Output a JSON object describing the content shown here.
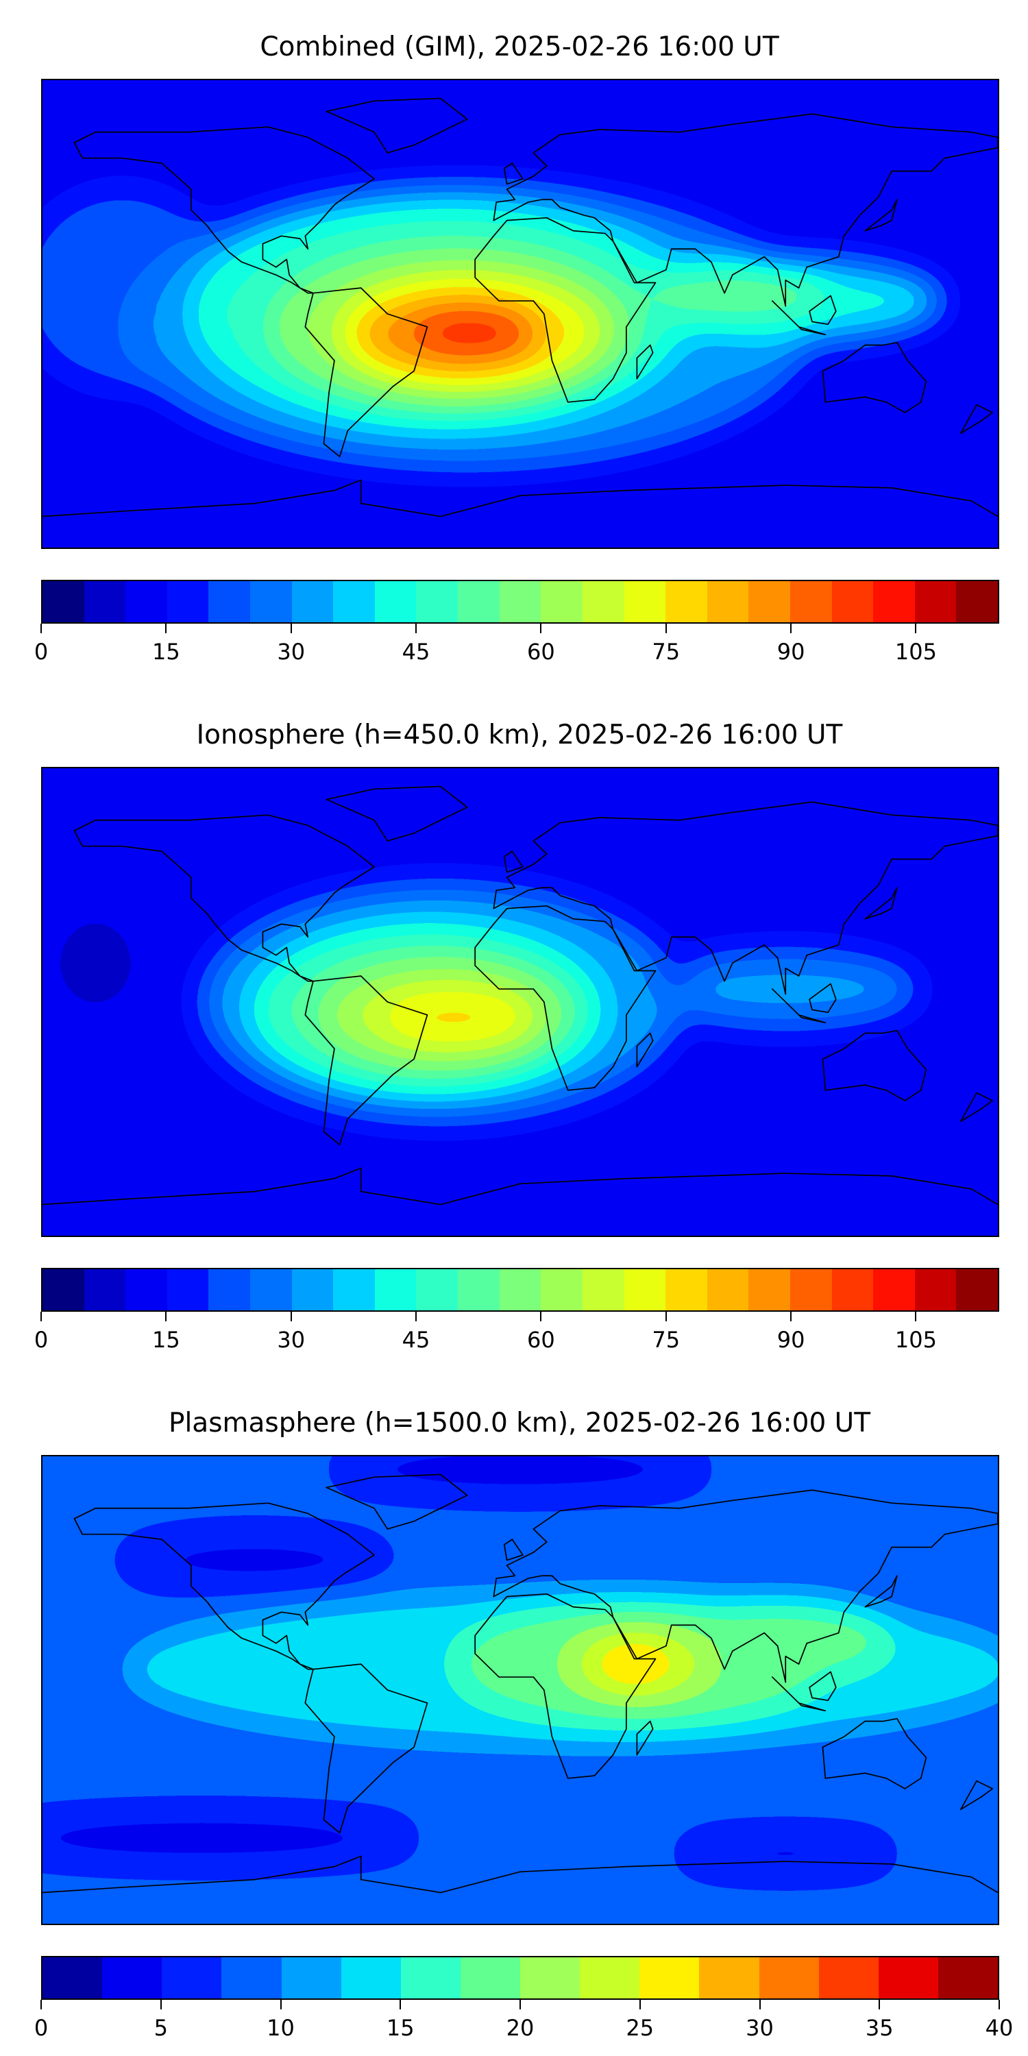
{
  "chart_data": [
    {
      "type": "heatmap",
      "title": "Combined (GIM), 2025-02-26 16:00 UT",
      "projection": "equirectangular world map with coastlines",
      "colormap": "jet",
      "levels": {
        "min": 0,
        "max": 115,
        "step": 5
      },
      "colorbar_ticks": [
        "0",
        "15",
        "30",
        "45",
        "60",
        "75",
        "90",
        "105"
      ],
      "tick_values": [
        0,
        15,
        30,
        45,
        60,
        75,
        90,
        105
      ],
      "background_value": 12,
      "features": [
        {
          "lon": -150,
          "lat": 10,
          "rx": 40,
          "ry": 40,
          "value": 22
        },
        {
          "lon": -20,
          "lat": -5,
          "rx": 130,
          "ry": 55,
          "value": 30
        },
        {
          "lon": -30,
          "lat": 0,
          "rx": 95,
          "ry": 45,
          "value": 45
        },
        {
          "lon": 100,
          "lat": 5,
          "rx": 60,
          "ry": 16,
          "value": 42
        },
        {
          "lon": -25,
          "lat": -5,
          "rx": 70,
          "ry": 32,
          "value": 60
        },
        {
          "lon": 80,
          "lat": 8,
          "rx": 35,
          "ry": 10,
          "value": 55
        },
        {
          "lon": -20,
          "lat": -7,
          "rx": 50,
          "ry": 22,
          "value": 75
        },
        {
          "lon": -25,
          "lat": -8,
          "rx": 35,
          "ry": 14,
          "value": 88
        },
        {
          "lon": -18,
          "lat": -7,
          "rx": 22,
          "ry": 8,
          "value": 100
        }
      ]
    },
    {
      "type": "heatmap",
      "title": "Ionosphere  (h=450.0 km), 2025-02-26 16:00 UT",
      "projection": "equirectangular world map with coastlines",
      "colormap": "jet",
      "levels": {
        "min": 0,
        "max": 115,
        "step": 5
      },
      "colorbar_ticks": [
        "0",
        "15",
        "30",
        "45",
        "60",
        "75",
        "90",
        "105"
      ],
      "tick_values": [
        0,
        15,
        30,
        45,
        60,
        75,
        90,
        105
      ],
      "background_value": 13,
      "features": [
        {
          "lon": -160,
          "lat": 15,
          "rx": 12,
          "ry": 15,
          "value": 5
        },
        {
          "lon": -30,
          "lat": 0,
          "rx": 90,
          "ry": 45,
          "value": 33
        },
        {
          "lon": 100,
          "lat": 5,
          "rx": 50,
          "ry": 14,
          "value": 32
        },
        {
          "lon": -35,
          "lat": -3,
          "rx": 65,
          "ry": 32,
          "value": 50
        },
        {
          "lon": -30,
          "lat": -5,
          "rx": 45,
          "ry": 20,
          "value": 65
        },
        {
          "lon": -25,
          "lat": -6,
          "rx": 28,
          "ry": 10,
          "value": 77
        },
        {
          "lon": 58,
          "lat": 8,
          "rx": 6,
          "ry": 4,
          "value": 10
        }
      ]
    },
    {
      "type": "heatmap",
      "title": "Plasmasphere (h=1500.0 km), 2025-02-26 16:00 UT",
      "projection": "equirectangular world map with coastlines",
      "colormap": "jet",
      "levels": {
        "min": 0,
        "max": 40,
        "step": 2.5
      },
      "colorbar_ticks": [
        "0",
        "5",
        "10",
        "15",
        "20",
        "25",
        "30",
        "35",
        "40"
      ],
      "tick_values": [
        0,
        5,
        10,
        15,
        20,
        25,
        30,
        35,
        40
      ],
      "background_value": 8,
      "features": [
        {
          "lon": 0,
          "lat": 85,
          "rx": 70,
          "ry": 8,
          "value": 3
        },
        {
          "lon": -100,
          "lat": 50,
          "rx": 50,
          "ry": 10,
          "value": 4
        },
        {
          "lon": -120,
          "lat": -57,
          "rx": 80,
          "ry": 8,
          "value": 3
        },
        {
          "lon": 100,
          "lat": -63,
          "rx": 40,
          "ry": 6,
          "value": 3
        },
        {
          "lon": 20,
          "lat": 8,
          "rx": 170,
          "ry": 30,
          "value": 14
        },
        {
          "lon": 45,
          "lat": 10,
          "rx": 70,
          "ry": 24,
          "value": 19
        },
        {
          "lon": 100,
          "lat": 20,
          "rx": 40,
          "ry": 15,
          "value": 19
        },
        {
          "lon": 45,
          "lat": 10,
          "rx": 28,
          "ry": 13,
          "value": 24
        },
        {
          "lon": 43,
          "lat": 10,
          "rx": 13,
          "ry": 7,
          "value": 30
        }
      ]
    }
  ],
  "colors": {
    "jet23": [
      "#000080",
      "#0000c8",
      "#0000f5",
      "#0010ff",
      "#0050ff",
      "#0070ff",
      "#00a0ff",
      "#00d0ff",
      "#10ffe0",
      "#30ffc5",
      "#55ffa0",
      "#7cff7a",
      "#a0ff55",
      "#c8ff30",
      "#e8ff10",
      "#ffd800",
      "#ffb400",
      "#ff9000",
      "#ff6000",
      "#ff3800",
      "#ff1000",
      "#c80000",
      "#900000"
    ],
    "jet16": [
      "#0000a0",
      "#0000f0",
      "#0020ff",
      "#0060ff",
      "#00a0ff",
      "#00e0f8",
      "#30ffc8",
      "#60ff90",
      "#a0ff58",
      "#c8ff28",
      "#fff000",
      "#ffb000",
      "#ff7800",
      "#ff3c00",
      "#e80000",
      "#a00000"
    ]
  }
}
